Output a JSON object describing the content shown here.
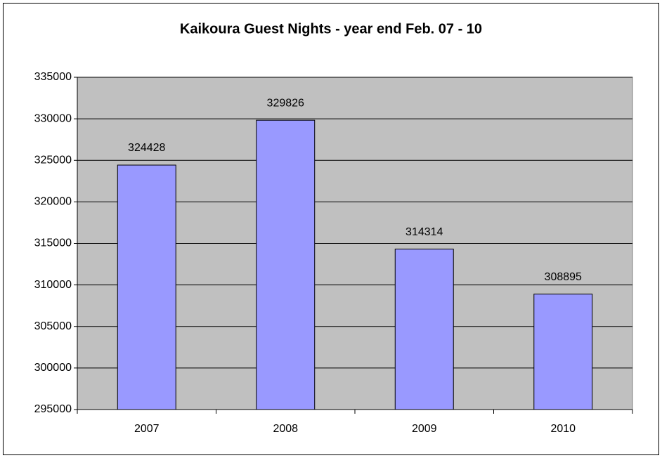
{
  "chart_data": {
    "type": "bar",
    "title": "Kaikoura Guest Nights - year end Feb. 07 - 10",
    "categories": [
      "2007",
      "2008",
      "2009",
      "2010"
    ],
    "values": [
      324428,
      329826,
      314314,
      308895
    ],
    "color": "#9999ff",
    "ylim": [
      295000,
      335000
    ],
    "yticks": [
      295000,
      300000,
      305000,
      310000,
      315000,
      320000,
      325000,
      330000,
      335000
    ],
    "grid": true
  }
}
